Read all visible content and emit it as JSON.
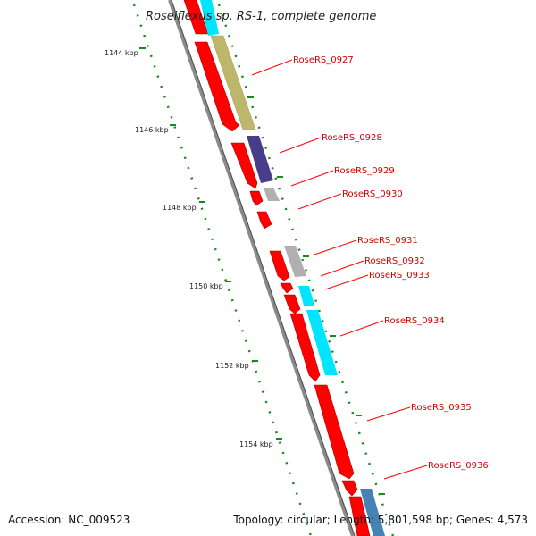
{
  "title": "Roseiflexus sp. RS-1, complete genome",
  "accession": "Accession: NC_009523",
  "summary": "Topology: circular; Length: 5,801,598 bp; Genes: 4,573",
  "kbp_labels": [
    "1144 kbp",
    "1146 kbp",
    "1148 kbp",
    "1150 kbp",
    "1152 kbp",
    "1154 kbp"
  ],
  "gene_labels": [
    "RoseRS_0927",
    "RoseRS_0928",
    "RoseRS_0929",
    "RoseRS_0930",
    "RoseRS_0931",
    "RoseRS_0932",
    "RoseRS_0933",
    "RoseRS_0934",
    "RoseRS_0935",
    "RoseRS_0936"
  ],
  "colors": {
    "cds": "#ff0000",
    "label": "#d40000",
    "backbone": "#8a8a8a",
    "tick": "#1a8a1a",
    "cog": [
      "#bdb76b",
      "#483d8b",
      "#b0b0b0",
      "#00e5ff",
      "#4682b4"
    ]
  }
}
